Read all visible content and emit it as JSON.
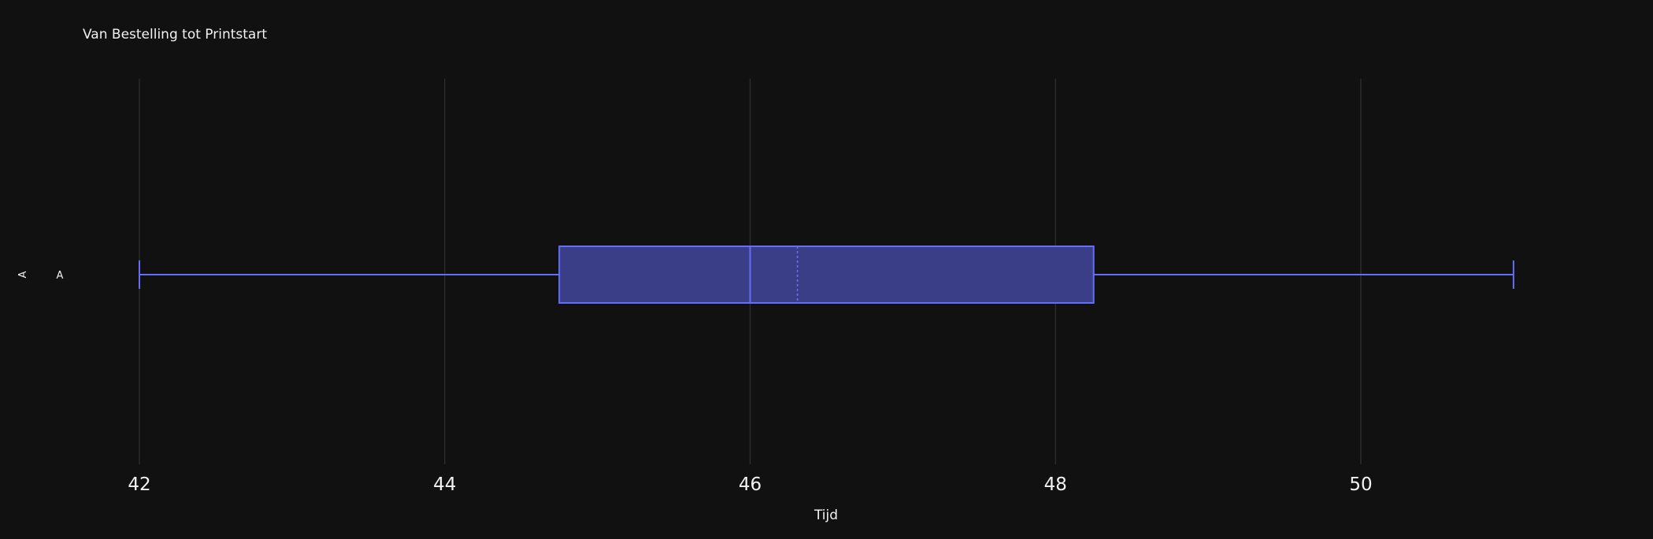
{
  "chart_data": {
    "type": "box",
    "title": "Van Bestelling tot Printstart",
    "xlabel": "Tijd",
    "ylabel": "A",
    "xlim": [
      41.4,
      52.9
    ],
    "xticks": [
      42,
      44,
      46,
      48,
      50
    ],
    "grid": true,
    "orientation": "horizontal",
    "box_color": "#636efa",
    "box_fill": "#3a3e86",
    "series": [
      {
        "category": "A",
        "min": 42,
        "q1": 44.75,
        "median": 46,
        "mean": 46.31,
        "q3": 48.25,
        "max": 51
      }
    ]
  }
}
